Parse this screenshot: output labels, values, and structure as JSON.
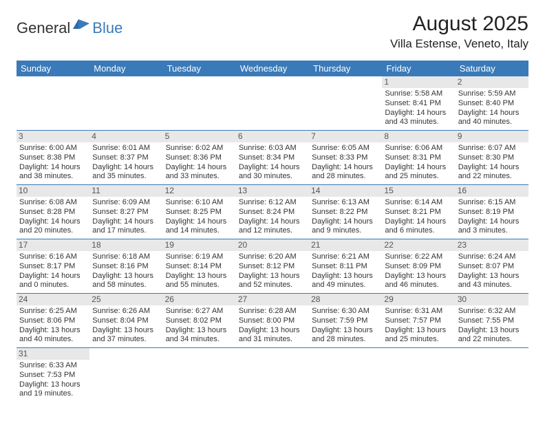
{
  "brand": {
    "part1": "General",
    "part2": "Blue"
  },
  "title": "August 2025",
  "location": "Villa Estense, Veneto, Italy",
  "colors": {
    "header_bg": "#3a7ab8",
    "header_text": "#ffffff",
    "daynum_bg": "#e8e8e8",
    "row_border": "#3a7ab8",
    "page_bg": "#ffffff",
    "text": "#333333"
  },
  "weekdays": [
    "Sunday",
    "Monday",
    "Tuesday",
    "Wednesday",
    "Thursday",
    "Friday",
    "Saturday"
  ],
  "weeks": [
    [
      null,
      null,
      null,
      null,
      null,
      {
        "n": "1",
        "sr": "Sunrise: 5:58 AM",
        "ss": "Sunset: 8:41 PM",
        "d1": "Daylight: 14 hours",
        "d2": "and 43 minutes."
      },
      {
        "n": "2",
        "sr": "Sunrise: 5:59 AM",
        "ss": "Sunset: 8:40 PM",
        "d1": "Daylight: 14 hours",
        "d2": "and 40 minutes."
      }
    ],
    [
      {
        "n": "3",
        "sr": "Sunrise: 6:00 AM",
        "ss": "Sunset: 8:38 PM",
        "d1": "Daylight: 14 hours",
        "d2": "and 38 minutes."
      },
      {
        "n": "4",
        "sr": "Sunrise: 6:01 AM",
        "ss": "Sunset: 8:37 PM",
        "d1": "Daylight: 14 hours",
        "d2": "and 35 minutes."
      },
      {
        "n": "5",
        "sr": "Sunrise: 6:02 AM",
        "ss": "Sunset: 8:36 PM",
        "d1": "Daylight: 14 hours",
        "d2": "and 33 minutes."
      },
      {
        "n": "6",
        "sr": "Sunrise: 6:03 AM",
        "ss": "Sunset: 8:34 PM",
        "d1": "Daylight: 14 hours",
        "d2": "and 30 minutes."
      },
      {
        "n": "7",
        "sr": "Sunrise: 6:05 AM",
        "ss": "Sunset: 8:33 PM",
        "d1": "Daylight: 14 hours",
        "d2": "and 28 minutes."
      },
      {
        "n": "8",
        "sr": "Sunrise: 6:06 AM",
        "ss": "Sunset: 8:31 PM",
        "d1": "Daylight: 14 hours",
        "d2": "and 25 minutes."
      },
      {
        "n": "9",
        "sr": "Sunrise: 6:07 AM",
        "ss": "Sunset: 8:30 PM",
        "d1": "Daylight: 14 hours",
        "d2": "and 22 minutes."
      }
    ],
    [
      {
        "n": "10",
        "sr": "Sunrise: 6:08 AM",
        "ss": "Sunset: 8:28 PM",
        "d1": "Daylight: 14 hours",
        "d2": "and 20 minutes."
      },
      {
        "n": "11",
        "sr": "Sunrise: 6:09 AM",
        "ss": "Sunset: 8:27 PM",
        "d1": "Daylight: 14 hours",
        "d2": "and 17 minutes."
      },
      {
        "n": "12",
        "sr": "Sunrise: 6:10 AM",
        "ss": "Sunset: 8:25 PM",
        "d1": "Daylight: 14 hours",
        "d2": "and 14 minutes."
      },
      {
        "n": "13",
        "sr": "Sunrise: 6:12 AM",
        "ss": "Sunset: 8:24 PM",
        "d1": "Daylight: 14 hours",
        "d2": "and 12 minutes."
      },
      {
        "n": "14",
        "sr": "Sunrise: 6:13 AM",
        "ss": "Sunset: 8:22 PM",
        "d1": "Daylight: 14 hours",
        "d2": "and 9 minutes."
      },
      {
        "n": "15",
        "sr": "Sunrise: 6:14 AM",
        "ss": "Sunset: 8:21 PM",
        "d1": "Daylight: 14 hours",
        "d2": "and 6 minutes."
      },
      {
        "n": "16",
        "sr": "Sunrise: 6:15 AM",
        "ss": "Sunset: 8:19 PM",
        "d1": "Daylight: 14 hours",
        "d2": "and 3 minutes."
      }
    ],
    [
      {
        "n": "17",
        "sr": "Sunrise: 6:16 AM",
        "ss": "Sunset: 8:17 PM",
        "d1": "Daylight: 14 hours",
        "d2": "and 0 minutes."
      },
      {
        "n": "18",
        "sr": "Sunrise: 6:18 AM",
        "ss": "Sunset: 8:16 PM",
        "d1": "Daylight: 13 hours",
        "d2": "and 58 minutes."
      },
      {
        "n": "19",
        "sr": "Sunrise: 6:19 AM",
        "ss": "Sunset: 8:14 PM",
        "d1": "Daylight: 13 hours",
        "d2": "and 55 minutes."
      },
      {
        "n": "20",
        "sr": "Sunrise: 6:20 AM",
        "ss": "Sunset: 8:12 PM",
        "d1": "Daylight: 13 hours",
        "d2": "and 52 minutes."
      },
      {
        "n": "21",
        "sr": "Sunrise: 6:21 AM",
        "ss": "Sunset: 8:11 PM",
        "d1": "Daylight: 13 hours",
        "d2": "and 49 minutes."
      },
      {
        "n": "22",
        "sr": "Sunrise: 6:22 AM",
        "ss": "Sunset: 8:09 PM",
        "d1": "Daylight: 13 hours",
        "d2": "and 46 minutes."
      },
      {
        "n": "23",
        "sr": "Sunrise: 6:24 AM",
        "ss": "Sunset: 8:07 PM",
        "d1": "Daylight: 13 hours",
        "d2": "and 43 minutes."
      }
    ],
    [
      {
        "n": "24",
        "sr": "Sunrise: 6:25 AM",
        "ss": "Sunset: 8:06 PM",
        "d1": "Daylight: 13 hours",
        "d2": "and 40 minutes."
      },
      {
        "n": "25",
        "sr": "Sunrise: 6:26 AM",
        "ss": "Sunset: 8:04 PM",
        "d1": "Daylight: 13 hours",
        "d2": "and 37 minutes."
      },
      {
        "n": "26",
        "sr": "Sunrise: 6:27 AM",
        "ss": "Sunset: 8:02 PM",
        "d1": "Daylight: 13 hours",
        "d2": "and 34 minutes."
      },
      {
        "n": "27",
        "sr": "Sunrise: 6:28 AM",
        "ss": "Sunset: 8:00 PM",
        "d1": "Daylight: 13 hours",
        "d2": "and 31 minutes."
      },
      {
        "n": "28",
        "sr": "Sunrise: 6:30 AM",
        "ss": "Sunset: 7:59 PM",
        "d1": "Daylight: 13 hours",
        "d2": "and 28 minutes."
      },
      {
        "n": "29",
        "sr": "Sunrise: 6:31 AM",
        "ss": "Sunset: 7:57 PM",
        "d1": "Daylight: 13 hours",
        "d2": "and 25 minutes."
      },
      {
        "n": "30",
        "sr": "Sunrise: 6:32 AM",
        "ss": "Sunset: 7:55 PM",
        "d1": "Daylight: 13 hours",
        "d2": "and 22 minutes."
      }
    ],
    [
      {
        "n": "31",
        "sr": "Sunrise: 6:33 AM",
        "ss": "Sunset: 7:53 PM",
        "d1": "Daylight: 13 hours",
        "d2": "and 19 minutes."
      },
      null,
      null,
      null,
      null,
      null,
      null
    ]
  ]
}
